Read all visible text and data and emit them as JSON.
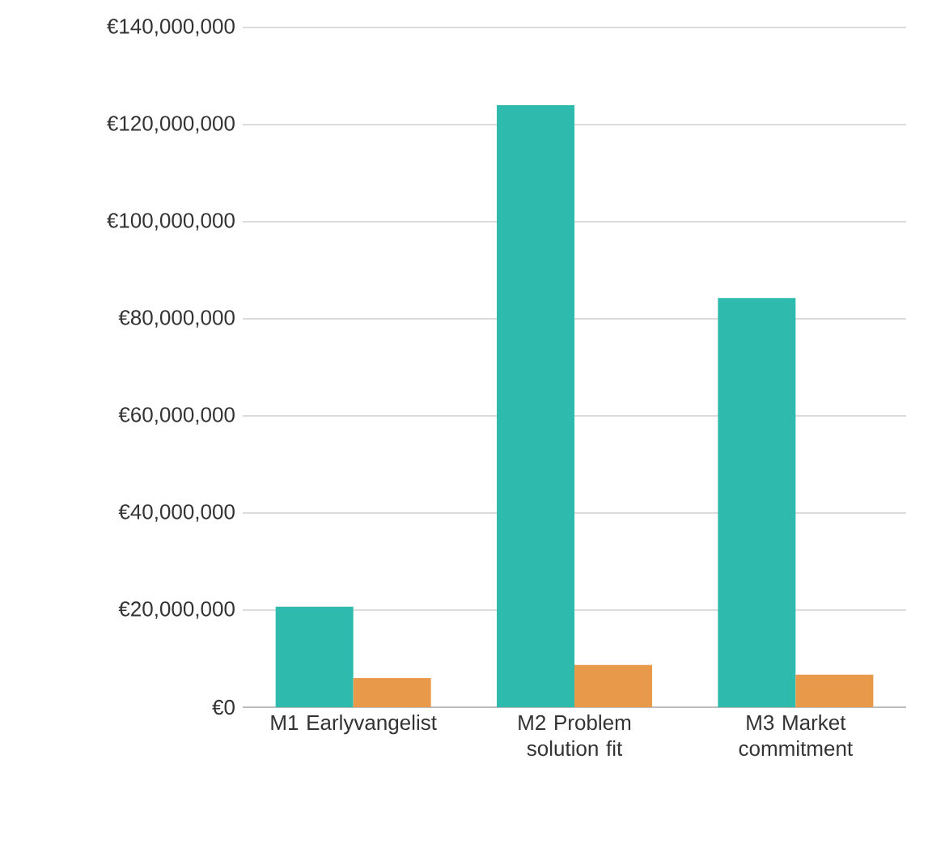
{
  "chart_data": {
    "type": "bar",
    "categories": [
      "M1 Earlyvangelist",
      "M2 Problem solution fit",
      "M3 Market commitment"
    ],
    "series": [
      {
        "color": "#2ebbad",
        "values": [
          20700000,
          124000000,
          84300000
        ]
      },
      {
        "color": "#e8994a",
        "values": [
          6000000,
          8700000,
          6700000
        ]
      }
    ],
    "ylim": [
      0,
      140000000
    ],
    "yticks": [
      {
        "value": 0,
        "label": "€0"
      },
      {
        "value": 20000000,
        "label": "€20,000,000"
      },
      {
        "value": 40000000,
        "label": "€40,000,000"
      },
      {
        "value": 60000000,
        "label": "€60,000,000"
      },
      {
        "value": 80000000,
        "label": "€80,000,000"
      },
      {
        "value": 100000000,
        "label": "€100,000,000"
      },
      {
        "value": 120000000,
        "label": "€120,000,000"
      },
      {
        "value": 140000000,
        "label": "€140,000,000"
      }
    ],
    "grid": "y"
  }
}
